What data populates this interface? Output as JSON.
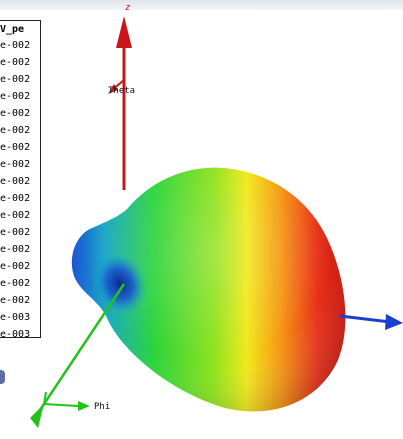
{
  "legend": {
    "title": "V_pe",
    "values": [
      "e-002",
      "e-002",
      "e-002",
      "e-002",
      "e-002",
      "e-002",
      "e-002",
      "e-002",
      "e-002",
      "e-002",
      "e-002",
      "e-002",
      "e-002",
      "e-002",
      "e-002",
      "e-002",
      "e-003",
      "e-003",
      "e-003"
    ]
  },
  "axes": {
    "z_label": "z",
    "theta_label": "Theta",
    "phi_label": "Phi"
  },
  "colors": {
    "z_axis": "#c8161b",
    "y_axis": "#1a3fd0",
    "x_axis": "#22c41a",
    "pattern_low": "#1a55d6",
    "pattern_high": "#e01810"
  }
}
